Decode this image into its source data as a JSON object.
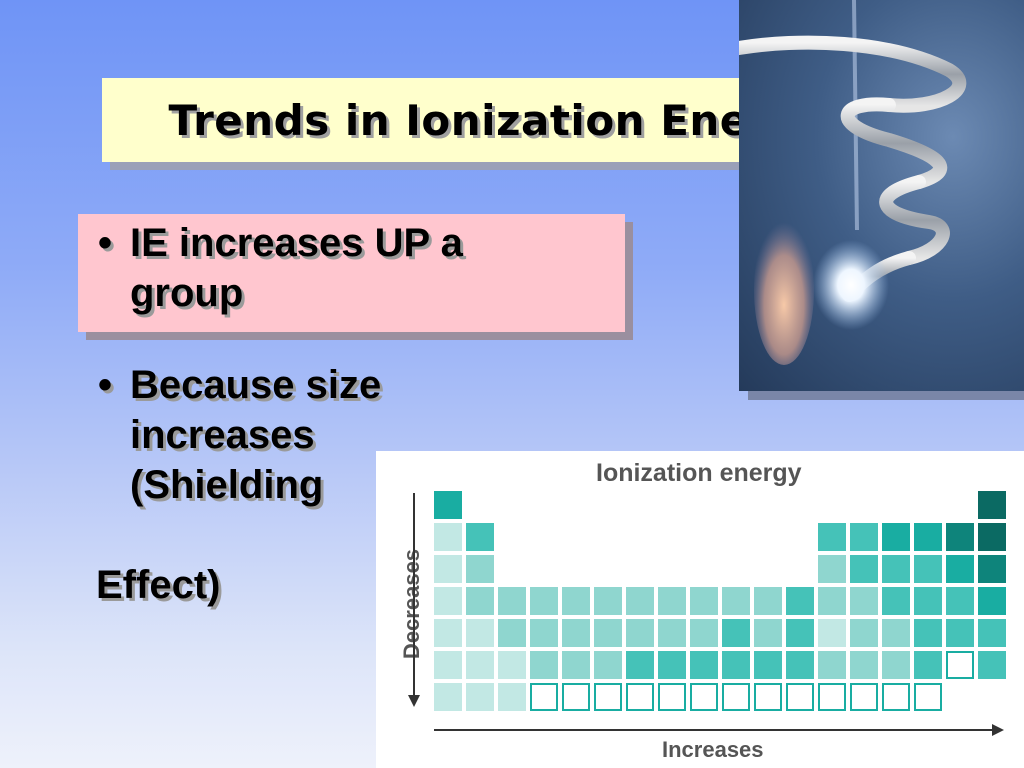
{
  "slide": {
    "title": "Trends in Ionization Energy",
    "bullets": [
      {
        "marker": "•",
        "lines": [
          "IE increases UP a",
          "group"
        ]
      },
      {
        "marker": "•",
        "lines": [
          "Because size",
          "increases",
          "(Shielding"
        ]
      },
      {
        "marker": "",
        "lines": [
          "Effect)"
        ]
      }
    ]
  },
  "photo": {
    "subject": "heated-wire-coil-with-flame"
  },
  "periodic_figure": {
    "title": "Ionization energy",
    "vertical_axis_label": "Decreases",
    "horizontal_axis_label": "Increases",
    "shade_colors": [
      "#ffffff",
      "#c2e8e4",
      "#8fd6cf",
      "#45c2b8",
      "#19ada2",
      "#0e847b",
      "#0b6a63"
    ],
    "rows": [
      [
        4,
        0,
        0,
        0,
        0,
        0,
        0,
        0,
        0,
        0,
        0,
        0,
        0,
        0,
        0,
        0,
        0,
        6
      ],
      [
        1,
        3,
        0,
        0,
        0,
        0,
        0,
        0,
        0,
        0,
        0,
        0,
        3,
        3,
        4,
        4,
        5,
        6
      ],
      [
        1,
        2,
        0,
        0,
        0,
        0,
        0,
        0,
        0,
        0,
        0,
        0,
        2,
        3,
        3,
        3,
        4,
        5
      ],
      [
        1,
        2,
        2,
        2,
        2,
        2,
        2,
        2,
        2,
        2,
        2,
        3,
        2,
        2,
        3,
        3,
        3,
        4
      ],
      [
        1,
        1,
        2,
        2,
        2,
        2,
        2,
        2,
        2,
        3,
        2,
        3,
        1,
        2,
        2,
        3,
        3,
        3
      ],
      [
        1,
        1,
        1,
        2,
        2,
        2,
        3,
        3,
        3,
        3,
        3,
        3,
        2,
        2,
        2,
        3,
        0,
        3
      ],
      [
        1,
        1,
        1,
        0,
        0,
        0,
        0,
        0,
        0,
        0,
        0,
        0,
        0,
        0,
        0,
        0,
        0,
        0
      ]
    ],
    "outlined_empty": [
      [
        5,
        16
      ],
      [
        6,
        3
      ],
      [
        6,
        4
      ],
      [
        6,
        5
      ],
      [
        6,
        6
      ],
      [
        6,
        7
      ],
      [
        6,
        8
      ],
      [
        6,
        9
      ],
      [
        6,
        10
      ],
      [
        6,
        11
      ],
      [
        6,
        12
      ],
      [
        6,
        13
      ],
      [
        6,
        14
      ],
      [
        6,
        15
      ]
    ]
  }
}
